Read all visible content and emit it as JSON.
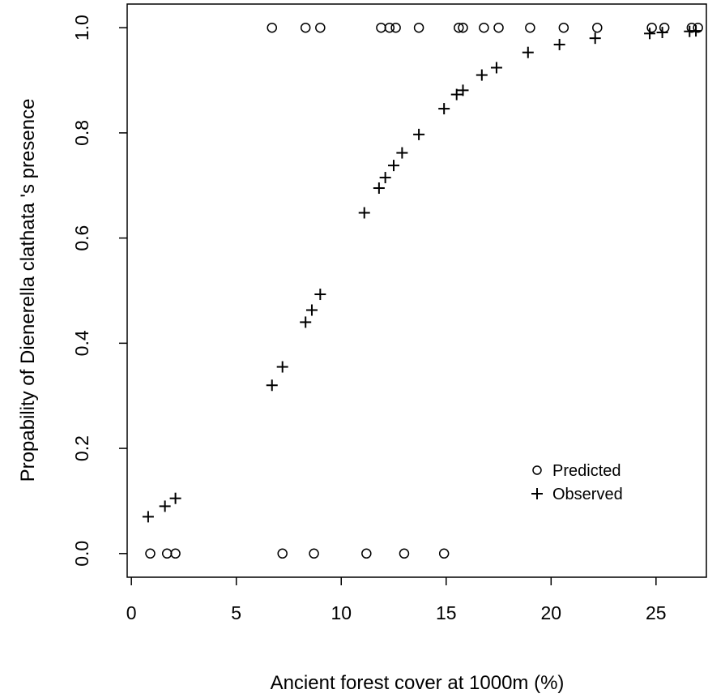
{
  "chart_data": {
    "type": "scatter",
    "xlabel": "Ancient forest cover at 1000m (%)",
    "ylabel": "Propability of Dienerella clathata 's presence",
    "xlim": [
      -0.2,
      27.4
    ],
    "ylim": [
      -0.045,
      1.045
    ],
    "x_ticks": [
      0,
      5,
      10,
      15,
      20,
      25
    ],
    "x_tick_labels": [
      "0",
      "5",
      "10",
      "15",
      "20",
      "25"
    ],
    "y_ticks": [
      0.0,
      0.2,
      0.4,
      0.6,
      0.8,
      1.0
    ],
    "y_tick_labels": [
      "0.0",
      "0.2",
      "0.4",
      "0.6",
      "0.8",
      "1.0"
    ],
    "grid": false,
    "legend_position": "bottom-right",
    "series": [
      {
        "name": "Predicted",
        "marker": "circle",
        "color": "#000000",
        "points": [
          [
            0.9,
            0
          ],
          [
            1.7,
            0
          ],
          [
            2.1,
            0
          ],
          [
            7.2,
            0
          ],
          [
            8.7,
            0
          ],
          [
            11.2,
            0
          ],
          [
            13.0,
            0
          ],
          [
            14.9,
            0
          ],
          [
            6.7,
            1
          ],
          [
            8.3,
            1
          ],
          [
            9.0,
            1
          ],
          [
            11.9,
            1
          ],
          [
            12.3,
            1
          ],
          [
            12.6,
            1
          ],
          [
            13.7,
            1
          ],
          [
            15.6,
            1
          ],
          [
            15.8,
            1
          ],
          [
            16.8,
            1
          ],
          [
            17.5,
            1
          ],
          [
            19.0,
            1
          ],
          [
            20.6,
            1
          ],
          [
            22.2,
            1
          ],
          [
            24.8,
            1
          ],
          [
            25.4,
            1
          ],
          [
            26.7,
            1
          ],
          [
            27.0,
            1
          ]
        ]
      },
      {
        "name": "Observed",
        "marker": "plus",
        "color": "#000000",
        "points": [
          [
            0.8,
            0.07
          ],
          [
            1.6,
            0.09
          ],
          [
            2.1,
            0.105
          ],
          [
            6.7,
            0.32
          ],
          [
            7.2,
            0.355
          ],
          [
            8.3,
            0.44
          ],
          [
            8.6,
            0.463
          ],
          [
            9.0,
            0.493
          ],
          [
            11.1,
            0.648
          ],
          [
            11.8,
            0.695
          ],
          [
            12.1,
            0.715
          ],
          [
            12.5,
            0.738
          ],
          [
            12.9,
            0.762
          ],
          [
            13.7,
            0.797
          ],
          [
            14.9,
            0.846
          ],
          [
            15.5,
            0.873
          ],
          [
            15.8,
            0.881
          ],
          [
            16.7,
            0.91
          ],
          [
            17.4,
            0.924
          ],
          [
            18.9,
            0.953
          ],
          [
            20.4,
            0.968
          ],
          [
            22.1,
            0.98
          ],
          [
            24.7,
            0.989
          ],
          [
            25.3,
            0.991
          ],
          [
            26.6,
            0.993
          ],
          [
            26.9,
            0.994
          ]
        ]
      }
    ]
  }
}
